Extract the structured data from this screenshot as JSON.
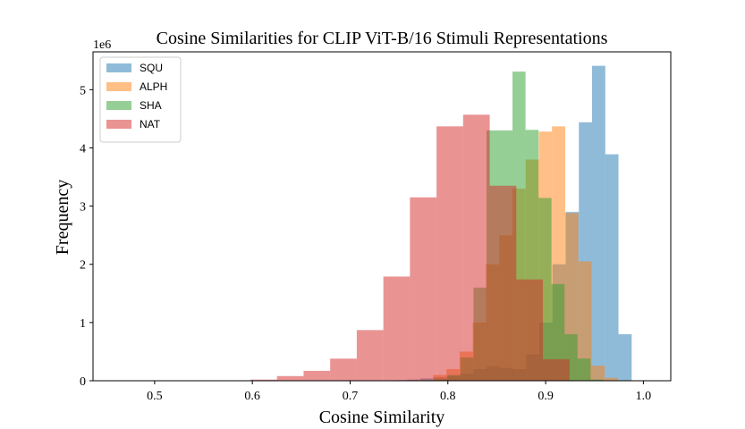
{
  "chart_data": {
    "type": "histogram",
    "title": "Cosine Similarities for CLIP ViT-B/16 Stimuli Representations",
    "xlabel": "Cosine Similarity",
    "ylabel": "Frequency",
    "y_offset_text": "1e6",
    "xlim": [
      0.437,
      1.028
    ],
    "ylim": [
      0,
      5.65
    ],
    "x_ticks": [
      0.5,
      0.6,
      0.7,
      0.8,
      0.9,
      1.0
    ],
    "x_tick_labels": [
      "0.5",
      "0.6",
      "0.7",
      "0.8",
      "0.9",
      "1.0"
    ],
    "y_ticks": [
      0,
      1,
      2,
      3,
      4,
      5
    ],
    "y_tick_labels": [
      "0",
      "1",
      "2",
      "3",
      "4",
      "5"
    ],
    "legend_position": "upper-left",
    "series": [
      {
        "name": "SQU",
        "color": "#1f77b4",
        "bin_edges": [
          0.745,
          0.7585,
          0.772,
          0.7855,
          0.799,
          0.8125,
          0.826,
          0.8395,
          0.853,
          0.8665,
          0.88,
          0.8935,
          0.907,
          0.9205,
          0.934,
          0.9475,
          0.961,
          0.9745,
          0.988
        ],
        "values": [
          0.01,
          0.02,
          0.04,
          0.06,
          0.08,
          0.12,
          0.2,
          0.25,
          0.22,
          0.2,
          0.45,
          1.0,
          2.0,
          2.9,
          4.44,
          5.41,
          3.89,
          0.8
        ]
      },
      {
        "name": "ALPH",
        "color": "#ff7f0e",
        "bin_edges": [
          0.785,
          0.7985,
          0.812,
          0.8255,
          0.839,
          0.8525,
          0.866,
          0.8795,
          0.893,
          0.9065,
          0.92,
          0.9335,
          0.947,
          0.9605,
          0.974,
          0.9875
        ],
        "values": [
          0.1,
          0.2,
          0.5,
          1.0,
          2.0,
          2.5,
          3.3,
          3.8,
          4.28,
          4.37,
          2.88,
          2.05,
          0.26,
          0.05,
          0.01
        ]
      },
      {
        "name": "SHA",
        "color": "#2ca02c",
        "bin_edges": [
          0.773,
          0.7863,
          0.7996,
          0.8129,
          0.8262,
          0.8395,
          0.8528,
          0.8661,
          0.8794,
          0.8927,
          0.906,
          0.9193,
          0.9326,
          0.9459,
          0.9592
        ],
        "values": [
          0.01,
          0.03,
          0.1,
          0.4,
          1.6,
          4.3,
          4.3,
          5.31,
          4.31,
          3.14,
          1.66,
          0.8,
          0.38,
          0.02
        ]
      },
      {
        "name": "NAT",
        "color": "#d62728",
        "bin_edges": [
          0.598,
          0.6252,
          0.6524,
          0.6796,
          0.7068,
          0.734,
          0.7612,
          0.7884,
          0.8156,
          0.8428,
          0.87,
          0.8972,
          0.9244
        ],
        "values": [
          0.02,
          0.08,
          0.17,
          0.38,
          0.87,
          1.79,
          3.15,
          4.37,
          4.57,
          3.35,
          1.74,
          0.37
        ]
      }
    ]
  }
}
